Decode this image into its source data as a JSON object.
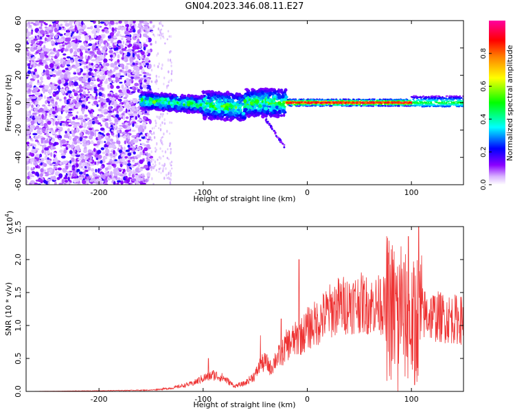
{
  "title": "GN04.2023.346.08.11.E27",
  "chart_data": [
    {
      "type": "heatmap",
      "xlabel": "Height of straight line (km)",
      "ylabel": "Frequency (Hz)",
      "xlim": [
        -270,
        150
      ],
      "ylim": [
        -60,
        60
      ],
      "x_ticks": [
        -200,
        -100,
        0,
        100
      ],
      "y_ticks": [
        -60,
        -40,
        -20,
        0,
        20,
        40,
        60
      ],
      "colorbar": {
        "label": "Normalized spectral amplitude",
        "range": [
          0,
          1
        ],
        "ticks": [
          0.0,
          0.2,
          0.4,
          0.6,
          0.8
        ],
        "tick_labels": [
          "0.0",
          "0.2",
          "0.4",
          "0.6",
          "0.8"
        ],
        "colormap": "rainbow",
        "colors": [
          "#ffffff",
          "#8a00ff",
          "#0000ff",
          "#00ffff",
          "#00ff00",
          "#ffff00",
          "#ff8000",
          "#ff0000",
          "#ff00a0"
        ]
      },
      "features": {
        "noise_region_x": [
          -270,
          -150
        ],
        "noise_tail_x": [
          -150,
          -130
        ],
        "main_band_x": [
          -160,
          150
        ],
        "chirp_tail": {
          "x": [
            -40,
            -22
          ],
          "y": [
            -12,
            -32
          ]
        },
        "strong_band_x": [
          -20,
          100
        ]
      }
    },
    {
      "type": "line",
      "xlabel": "Height of straight line (km)",
      "ylabel": "SNR (10 * v/v)",
      "y_multiplier": "(x10",
      "y_multiplier_exp": "4",
      "y_multiplier_close": ")",
      "xlim": [
        -270,
        150
      ],
      "ylim": [
        0,
        2.5
      ],
      "x_ticks": [
        -200,
        -100,
        0,
        100
      ],
      "y_ticks": [
        0.0,
        0.5,
        1.0,
        1.5,
        2.0,
        2.5
      ],
      "y_tick_labels": [
        "0.0",
        "0.5",
        "1.0",
        "1.5",
        "2.0",
        "2.5"
      ],
      "color": "#ee3333",
      "envelope": {
        "x": [
          -270,
          -200,
          -150,
          -130,
          -110,
          -100,
          -90,
          -80,
          -70,
          -60,
          -50,
          -45,
          -40,
          -35,
          -30,
          -25,
          -20,
          -15,
          -10,
          -5,
          0,
          10,
          20,
          30,
          40,
          50,
          60,
          70,
          80,
          85,
          90,
          95,
          100,
          105,
          110,
          120,
          130,
          140,
          150
        ],
        "y": [
          0.0,
          0.01,
          0.02,
          0.05,
          0.12,
          0.2,
          0.25,
          0.2,
          0.08,
          0.12,
          0.25,
          0.4,
          0.45,
          0.35,
          0.5,
          0.55,
          0.7,
          0.75,
          0.8,
          0.85,
          0.95,
          1.05,
          1.2,
          1.3,
          1.32,
          1.35,
          1.3,
          1.32,
          1.25,
          1.2,
          1.15,
          1.1,
          1.0,
          1.15,
          1.18,
          1.15,
          1.12,
          1.1,
          1.08
        ]
      },
      "spikes": [
        {
          "x": -8,
          "y": 2.0
        },
        {
          "x": 90,
          "y": 2.2
        },
        {
          "x": 97,
          "y": 2.35
        },
        {
          "x": 107,
          "y": 2.5
        },
        {
          "x": -95,
          "y": 0.5
        },
        {
          "x": -45,
          "y": 0.85
        },
        {
          "x": -25,
          "y": 1.1
        },
        {
          "x": 42,
          "y": 1.55
        },
        {
          "x": 70,
          "y": 1.7
        }
      ],
      "dips": [
        {
          "x": 87,
          "y": 0.0
        },
        {
          "x": 103,
          "y": 0.1
        }
      ]
    }
  ]
}
